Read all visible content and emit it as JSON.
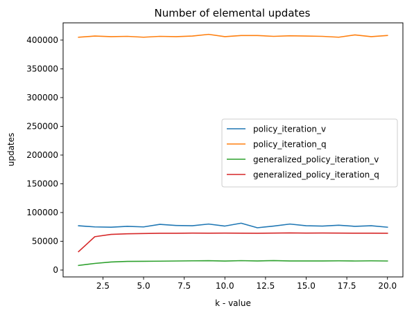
{
  "chart_data": {
    "type": "line",
    "title": "Number of elemental updates",
    "xlabel": "k - value",
    "ylabel": "updates",
    "xlim": [
      0.05,
      20.95
    ],
    "ylim": [
      -12000,
      430000
    ],
    "xticks": [
      2.5,
      5.0,
      7.5,
      10.0,
      12.5,
      15.0,
      17.5,
      20.0
    ],
    "xtick_labels": [
      "2.5",
      "5.0",
      "7.5",
      "10.0",
      "12.5",
      "15.0",
      "17.5",
      "20.0"
    ],
    "yticks": [
      0,
      50000,
      100000,
      150000,
      200000,
      250000,
      300000,
      350000,
      400000
    ],
    "ytick_labels": [
      "0",
      "50000",
      "100000",
      "150000",
      "200000",
      "250000",
      "300000",
      "350000",
      "400000"
    ],
    "grid": false,
    "legend_position": "center-right",
    "x": [
      1,
      2,
      3,
      4,
      5,
      6,
      7,
      8,
      9,
      10,
      11,
      12,
      13,
      14,
      15,
      16,
      17,
      18,
      19,
      20
    ],
    "series": [
      {
        "name": "policy_iteration_v",
        "color": "#1f77b4",
        "values": [
          77000,
          75000,
          74500,
          76000,
          75000,
          79500,
          77500,
          77000,
          80000,
          76500,
          81500,
          73500,
          76500,
          80000,
          77000,
          76500,
          78000,
          76000,
          77000,
          74500
        ]
      },
      {
        "name": "policy_iteration_q",
        "color": "#ff7f0e",
        "values": [
          405000,
          407000,
          406000,
          406500,
          405000,
          406500,
          406000,
          407000,
          410000,
          406000,
          408000,
          408000,
          406500,
          407500,
          407000,
          406500,
          405000,
          409000,
          406000,
          408000
        ]
      },
      {
        "name": "generalized_policy_iteration_v",
        "color": "#2ca02c",
        "values": [
          8000,
          11500,
          14000,
          15000,
          15200,
          15400,
          15700,
          16000,
          16200,
          15600,
          16300,
          15800,
          16400,
          15800,
          15800,
          15800,
          16000,
          15700,
          16000,
          15700
        ]
      },
      {
        "name": "generalized_policy_iteration_q",
        "color": "#d62728",
        "values": [
          32000,
          58000,
          62000,
          63000,
          63500,
          64000,
          64000,
          64200,
          64100,
          64200,
          64100,
          64000,
          64300,
          64600,
          64200,
          64400,
          64200,
          64100,
          64100,
          63900
        ]
      }
    ]
  }
}
